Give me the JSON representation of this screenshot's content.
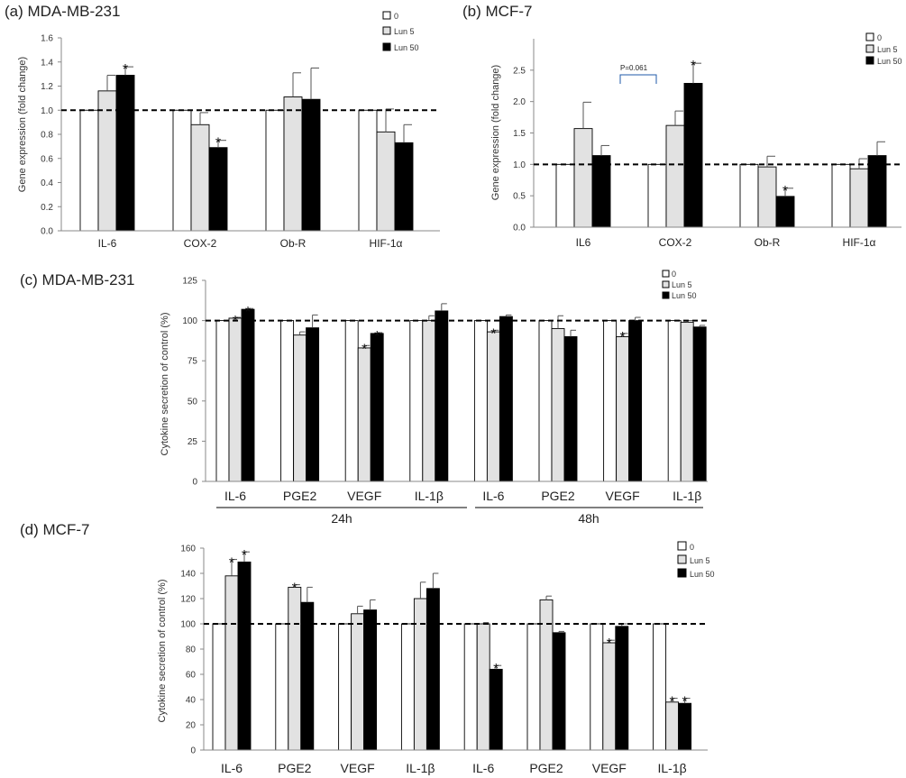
{
  "chart_data": [
    {
      "panel": "a",
      "title": "(a) MDA-MB-231",
      "type": "bar",
      "ylabel": "Gene expression (fold change)",
      "ylim": [
        0,
        1.6
      ],
      "yticks": [
        "0.0",
        "0.2",
        "0.4",
        "0.6",
        "0.8",
        "1.0",
        "1.2",
        "1.4",
        "1.6"
      ],
      "categories": [
        "IL-6",
        "COX-2",
        "Ob-R",
        "HIF-1α"
      ],
      "series": [
        {
          "name": "0",
          "values": [
            1.0,
            1.0,
            1.0,
            1.0
          ],
          "errors": [
            0,
            0,
            0,
            0
          ]
        },
        {
          "name": "Lun 5",
          "values": [
            1.16,
            0.88,
            1.11,
            0.82
          ],
          "errors": [
            0.13,
            0.1,
            0.2,
            0.19
          ]
        },
        {
          "name": "Lun 50",
          "values": [
            1.29,
            0.69,
            1.09,
            0.73
          ],
          "errors": [
            0.07,
            0.06,
            0.26,
            0.15
          ]
        }
      ],
      "significance": [
        [
          0,
          2
        ],
        [
          1,
          2
        ]
      ],
      "reference_line": 1.0,
      "legend_position": "top-right"
    },
    {
      "panel": "b",
      "title": "(b) MCF-7",
      "type": "bar",
      "ylabel": "Gene expression (fold change)",
      "ylim": [
        0,
        3.0
      ],
      "yticks": [
        "0.0",
        "0.5",
        "1.0",
        "1.5",
        "2.0",
        "2.5"
      ],
      "categories": [
        "IL6",
        "COX-2",
        "Ob-R",
        "HIF-1α"
      ],
      "series": [
        {
          "name": "0",
          "values": [
            1.0,
            1.0,
            1.0,
            1.0
          ],
          "errors": [
            0,
            0,
            0,
            0
          ]
        },
        {
          "name": "Lun 5",
          "values": [
            1.57,
            1.62,
            0.96,
            0.93
          ],
          "errors": [
            0.42,
            0.23,
            0.17,
            0.16
          ]
        },
        {
          "name": "Lun 50",
          "values": [
            1.14,
            2.29,
            0.49,
            1.14
          ],
          "errors": [
            0.16,
            0.32,
            0.13,
            0.22
          ]
        }
      ],
      "significance": [
        [
          1,
          2
        ],
        [
          2,
          2
        ]
      ],
      "annotation": "P=0.061",
      "reference_line": 1.0,
      "legend_position": "top-right"
    },
    {
      "panel": "c",
      "title": "(c) MDA-MB-231",
      "type": "bar",
      "ylabel": "Cytokine secretion of control (%)",
      "ylim": [
        0,
        125
      ],
      "yticks": [
        "0",
        "25",
        "50",
        "75",
        "100",
        "125"
      ],
      "categories": [
        "IL-6",
        "PGE2",
        "VEGF",
        "IL-1β",
        "IL-6",
        "PGE2",
        "VEGF",
        "IL-1β"
      ],
      "groups": [
        "24h",
        "48h"
      ],
      "series": [
        {
          "name": "0",
          "values": [
            100,
            100,
            100,
            100,
            100,
            100,
            100,
            100
          ],
          "errors": [
            0,
            0,
            0,
            0,
            0,
            0,
            0,
            0
          ]
        },
        {
          "name": "Lun 5",
          "values": [
            101.5,
            91,
            83,
            100,
            93,
            95,
            90,
            99
          ],
          "errors": [
            0.5,
            2,
            1.5,
            3,
            1,
            8,
            2,
            1
          ]
        },
        {
          "name": "Lun 50",
          "values": [
            107,
            95.5,
            92,
            106,
            102.5,
            90,
            100,
            96
          ],
          "errors": [
            0.5,
            8,
            0.5,
            4.5,
            1,
            4,
            2,
            1
          ]
        }
      ],
      "significance": [
        [
          0,
          1
        ],
        [
          0,
          2
        ],
        [
          2,
          1
        ],
        [
          2,
          2
        ],
        [
          4,
          1
        ],
        [
          6,
          1
        ]
      ],
      "reference_line": 100,
      "legend_position": "top-right"
    },
    {
      "panel": "d",
      "title": "(d) MCF-7",
      "type": "bar",
      "ylabel": "Cytokine secretion of control (%)",
      "ylim": [
        0,
        160
      ],
      "yticks": [
        "0",
        "20",
        "40",
        "60",
        "80",
        "100",
        "120",
        "140",
        "160"
      ],
      "categories": [
        "IL-6",
        "PGE2",
        "VEGF",
        "IL-1β",
        "IL-6",
        "PGE2",
        "VEGF",
        "IL-1β"
      ],
      "series": [
        {
          "name": "0",
          "values": [
            100,
            100,
            100,
            100,
            100,
            100,
            100,
            100
          ],
          "errors": [
            0,
            0,
            0,
            0,
            0,
            0,
            0,
            0
          ]
        },
        {
          "name": "Lun 5",
          "values": [
            138,
            129,
            108,
            120,
            100,
            119,
            85,
            38
          ],
          "errors": [
            13,
            2,
            6,
            13,
            1,
            3,
            2,
            3
          ]
        },
        {
          "name": "Lun 50",
          "values": [
            149,
            117,
            111,
            128,
            64,
            93,
            98,
            37
          ],
          "errors": [
            8,
            12,
            8,
            12,
            3,
            1,
            2,
            4
          ]
        }
      ],
      "significance": [
        [
          0,
          1
        ],
        [
          0,
          2
        ],
        [
          1,
          1
        ],
        [
          4,
          2
        ],
        [
          6,
          1
        ],
        [
          7,
          1
        ],
        [
          7,
          2
        ]
      ],
      "reference_line": 100,
      "legend_position": "top-right"
    }
  ]
}
